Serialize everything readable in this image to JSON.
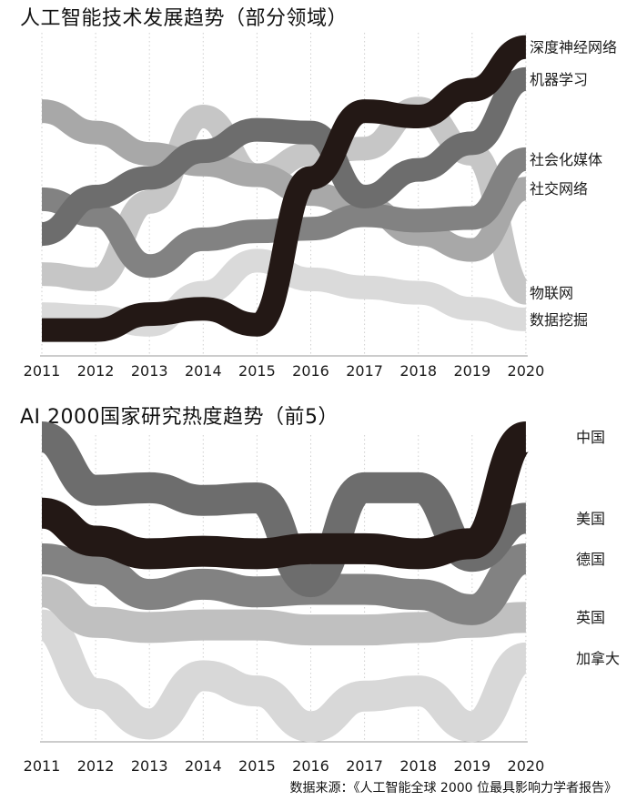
{
  "chart_data": [
    {
      "type": "area",
      "subtype": "bump",
      "title": "人工智能技术发展趋势（部分领域）",
      "years": [
        "2011",
        "2012",
        "2013",
        "2014",
        "2015",
        "2016",
        "2017",
        "2018",
        "2019",
        "2020"
      ],
      "ylabel": "",
      "series": [
        {
          "name": "深度神经网络",
          "color": "#231815",
          "values": [
            1,
            1,
            1.6,
            1.8,
            1.2,
            6.7,
            9.2,
            9.0,
            10.0,
            11.6
          ]
        },
        {
          "name": "机器学习",
          "color": "#6d6d6d",
          "values": [
            4.6,
            6.0,
            6.7,
            7.7,
            8.5,
            8.4,
            6.0,
            7.0,
            8.0,
            10.4
          ]
        },
        {
          "name": "社会化媒体",
          "color": "#828282",
          "values": [
            5.9,
            5.3,
            3.4,
            4.4,
            4.7,
            4.8,
            5.3,
            5.1,
            5.2,
            7.4
          ]
        },
        {
          "name": "社交网络",
          "color": "#a8a8a8",
          "values": [
            9.2,
            8.4,
            7.6,
            7.2,
            6.8,
            6.1,
            5.6,
            4.6,
            4.0,
            6.3
          ]
        },
        {
          "name": "物联网",
          "color": "#c6c6c6",
          "values": [
            3.1,
            2.9,
            5.8,
            9.0,
            6.8,
            7.6,
            7.8,
            9.3,
            7.6,
            2.4
          ]
        },
        {
          "name": "数据挖掘",
          "color": "#dadada",
          "values": [
            1.6,
            1.5,
            1.2,
            2.4,
            3.6,
            2.9,
            2.6,
            2.4,
            1.8,
            1.4
          ]
        }
      ]
    },
    {
      "type": "area",
      "subtype": "bump",
      "title": "AI 2000国家研究热度趋势（前5）",
      "years": [
        "2011",
        "2012",
        "2013",
        "2014",
        "2015",
        "2016",
        "2017",
        "2018",
        "2019",
        "2020"
      ],
      "ylabel": "",
      "series": [
        {
          "name": "中国",
          "color": "#231815",
          "values": [
            9.0,
            7.9,
            7.4,
            7.5,
            7.4,
            7.6,
            7.6,
            7.4,
            7.8,
            12.0
          ]
        },
        {
          "name": "美国",
          "color": "#6d6d6d",
          "values": [
            12.0,
            9.9,
            10.0,
            9.5,
            9.6,
            6.3,
            10.0,
            10.0,
            7.3,
            8.8
          ]
        },
        {
          "name": "德国",
          "color": "#828282",
          "values": [
            7.2,
            6.8,
            5.8,
            6.2,
            5.9,
            6.0,
            6.0,
            5.8,
            5.2,
            7.2
          ]
        },
        {
          "name": "英国",
          "color": "#c0c0c0",
          "values": [
            5.9,
            4.7,
            4.5,
            4.6,
            4.6,
            4.4,
            4.4,
            4.5,
            4.7,
            4.9
          ]
        },
        {
          "name": "加拿大",
          "color": "#d8d8d8",
          "values": [
            4.6,
            1.9,
            0.7,
            2.6,
            2.0,
            0.6,
            1.8,
            2.0,
            0.6,
            3.3
          ]
        }
      ]
    }
  ],
  "source_text": "数据来源：《人工智能全球 2000 位最具影响力学者报告》"
}
